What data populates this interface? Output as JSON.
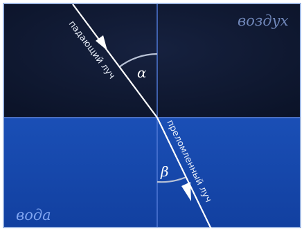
{
  "media": {
    "top_label": "воздух",
    "bottom_label": "вода"
  },
  "rays": {
    "incident_label": "падающий луч",
    "refracted_label": "преломленный луч"
  },
  "angles": {
    "incidence_symbol": "α",
    "refraction_symbol": "β"
  },
  "colors": {
    "air_background": "#0f1a33",
    "water_background": "#1445a8",
    "frame": "#7f9fd8",
    "interface_line": "#5f86e0",
    "normal_line": "#4f78d6",
    "ray": "#ffffff",
    "arc": "#b8c2d6",
    "air_label": "#6f86b8",
    "water_label": "#7fa4f0"
  }
}
